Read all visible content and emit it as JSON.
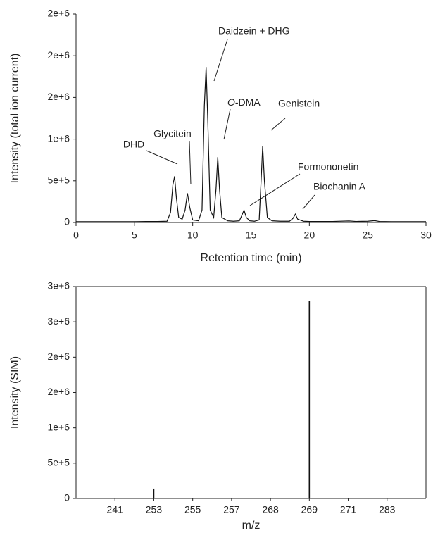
{
  "chart_data": [
    {
      "type": "line",
      "x_label": "Retention time (min)",
      "y_label": "Intensity (total ion current)",
      "xlim": [
        0,
        30
      ],
      "xticks": [
        0,
        5,
        10,
        15,
        20,
        25,
        30
      ],
      "ylim": [
        0,
        2500000
      ],
      "yticks": [
        0,
        {
          "value": 500000,
          "label": "5e+5"
        },
        {
          "value": 1000000,
          "label": "1e+6"
        },
        {
          "value": 1500000,
          "label": "2e+6"
        },
        {
          "value": 2000000,
          "label": "2e+6"
        },
        {
          "value": 2500000,
          "label": "2e+6"
        }
      ],
      "x": [
        0,
        1,
        2,
        3,
        4,
        5,
        6,
        7,
        7.8,
        8.1,
        8.3,
        8.45,
        8.6,
        8.8,
        9.1,
        9.35,
        9.55,
        9.75,
        10,
        10.5,
        10.8,
        11,
        11.15,
        11.3,
        11.5,
        11.8,
        12,
        12.15,
        12.3,
        12.5,
        13,
        13.5,
        14,
        14.2,
        14.4,
        14.6,
        14.9,
        15.3,
        15.7,
        15.9,
        16,
        16.15,
        16.4,
        16.8,
        17.5,
        18.3,
        18.6,
        18.8,
        19,
        19.5,
        20,
        22,
        23.4,
        24,
        25,
        25.6,
        26,
        27,
        28,
        30
      ],
      "series": [
        {
          "color": "#111111",
          "values": [
            10000,
            10000,
            10000,
            10000,
            10000,
            10000,
            12000,
            12000,
            15000,
            120000,
            450000,
            554000,
            300000,
            60000,
            40000,
            150000,
            351000,
            180000,
            30000,
            20000,
            150000,
            1400000,
            1865000,
            1200000,
            150000,
            60000,
            400000,
            784000,
            400000,
            60000,
            20000,
            15000,
            20000,
            80000,
            149000,
            60000,
            20000,
            15000,
            30000,
            600000,
            919000,
            500000,
            60000,
            20000,
            15000,
            15000,
            50000,
            100000,
            40000,
            15000,
            12000,
            12000,
            18000,
            12000,
            15000,
            22000,
            12000,
            10000,
            10000,
            10000
          ]
        }
      ],
      "annotations": [
        "DHD",
        "Glycitein",
        "Daidzein + DHG",
        "O-DMA",
        "Genistein",
        "Formononetin",
        "Biochanin A"
      ]
    },
    {
      "type": "bar",
      "x_label": "m/z",
      "y_label": "Intensity (SIM)",
      "categories": [
        "241",
        "253",
        "255",
        "257",
        "268",
        "269",
        "271",
        "283"
      ],
      "values": [
        0,
        140000,
        0,
        0,
        0,
        2800000,
        0,
        0
      ],
      "color": "#111111",
      "ylim": [
        0,
        3000000
      ],
      "yticks": [
        0,
        {
          "value": 500000,
          "label": "5e+5"
        },
        {
          "value": 1000000,
          "label": "1e+6"
        },
        {
          "value": 1500000,
          "label": "2e+6"
        },
        {
          "value": 2000000,
          "label": "2e+6"
        },
        {
          "value": 2500000,
          "label": "3e+6"
        },
        {
          "value": 3000000,
          "label": "3e+6"
        }
      ]
    }
  ]
}
